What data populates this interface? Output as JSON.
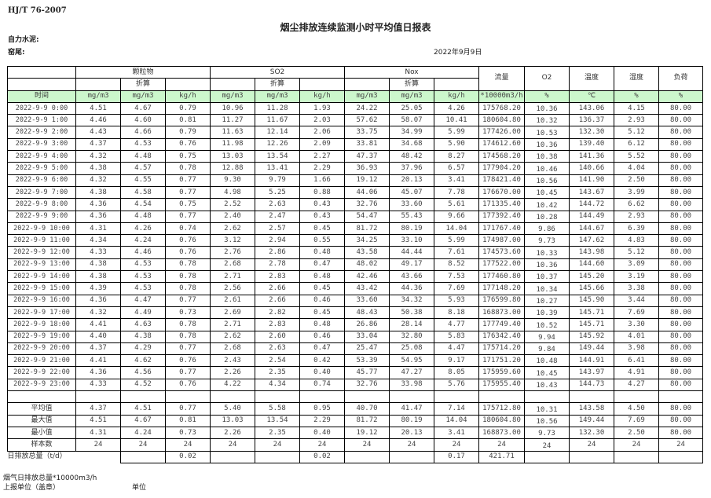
{
  "header": {
    "standard": "HJ/T  76-2007",
    "title": "烟尘排放连续监测小时平均值日报表",
    "company": "自力水泥:",
    "kiln": "窑尾:",
    "date": "2022年9月9日"
  },
  "table": {
    "groups": [
      "颗粒物",
      "SO2",
      "Nox"
    ],
    "converted_label": "折算",
    "single_columns": [
      "流量",
      "O2",
      "温度",
      "湿度",
      "负荷"
    ],
    "units": [
      "时间",
      "mg/m3",
      "mg/m3",
      "kg/h",
      "mg/m3",
      "mg/m3",
      "kg/h",
      "mg/m3",
      "mg/m3",
      "kg/h",
      "*10000m3/h",
      "%",
      "℃",
      "%",
      "%"
    ],
    "rows": [
      [
        "2022-9-9 0:00",
        "4.51",
        "4.67",
        "0.79",
        "10.96",
        "11.28",
        "1.93",
        "24.22",
        "25.05",
        "4.26",
        "175768.20",
        "10.36",
        "143.06",
        "4.15",
        "80.00"
      ],
      [
        "2022-9-9 1:00",
        "4.46",
        "4.60",
        "0.81",
        "11.27",
        "11.67",
        "2.03",
        "57.62",
        "58.07",
        "10.41",
        "180604.80",
        "10.32",
        "136.37",
        "2.93",
        "80.00"
      ],
      [
        "2022-9-9 2:00",
        "4.43",
        "4.66",
        "0.79",
        "11.63",
        "12.14",
        "2.06",
        "33.75",
        "34.99",
        "5.99",
        "177426.00",
        "10.53",
        "132.30",
        "5.12",
        "80.00"
      ],
      [
        "2022-9-9 3:00",
        "4.37",
        "4.53",
        "0.76",
        "11.98",
        "12.26",
        "2.09",
        "33.81",
        "34.68",
        "5.90",
        "174612.60",
        "10.36",
        "139.40",
        "6.12",
        "80.00"
      ],
      [
        "2022-9-9 4:00",
        "4.32",
        "4.48",
        "0.75",
        "13.03",
        "13.54",
        "2.27",
        "47.37",
        "48.42",
        "8.27",
        "174568.20",
        "10.38",
        "141.36",
        "5.52",
        "80.00"
      ],
      [
        "2022-9-9 5:00",
        "4.38",
        "4.57",
        "0.78",
        "12.88",
        "13.41",
        "2.29",
        "36.93",
        "37.96",
        "6.57",
        "177904.20",
        "10.46",
        "140.66",
        "4.04",
        "80.00"
      ],
      [
        "2022-9-9 6:00",
        "4.32",
        "4.55",
        "0.77",
        "9.30",
        "9.79",
        "1.66",
        "19.12",
        "20.13",
        "3.41",
        "178421.40",
        "10.56",
        "141.90",
        "2.50",
        "80.00"
      ],
      [
        "2022-9-9 7:00",
        "4.38",
        "4.58",
        "0.77",
        "4.98",
        "5.25",
        "0.88",
        "44.06",
        "45.07",
        "7.78",
        "176670.00",
        "10.45",
        "143.67",
        "3.99",
        "80.00"
      ],
      [
        "2022-9-9 8:00",
        "4.36",
        "4.54",
        "0.75",
        "2.52",
        "2.63",
        "0.43",
        "32.76",
        "33.60",
        "5.61",
        "171335.40",
        "10.42",
        "144.72",
        "6.62",
        "80.00"
      ],
      [
        "2022-9-9 9:00",
        "4.36",
        "4.48",
        "0.77",
        "2.40",
        "2.47",
        "0.43",
        "54.47",
        "55.43",
        "9.66",
        "177392.40",
        "10.28",
        "144.49",
        "2.93",
        "80.00"
      ],
      [
        "2022-9-9 10:00",
        "4.31",
        "4.26",
        "0.74",
        "2.62",
        "2.57",
        "0.45",
        "81.72",
        "80.19",
        "14.04",
        "171767.40",
        "9.86",
        "144.67",
        "6.39",
        "80.00"
      ],
      [
        "2022-9-9 11:00",
        "4.34",
        "4.24",
        "0.76",
        "3.12",
        "2.94",
        "0.55",
        "34.25",
        "33.10",
        "5.99",
        "174987.00",
        "9.73",
        "147.62",
        "4.83",
        "80.00"
      ],
      [
        "2022-9-9 12:00",
        "4.33",
        "4.46",
        "0.76",
        "2.76",
        "2.86",
        "0.48",
        "43.58",
        "44.44",
        "7.61",
        "174573.60",
        "10.33",
        "143.98",
        "5.12",
        "80.00"
      ],
      [
        "2022-9-9 13:00",
        "4.38",
        "4.53",
        "0.78",
        "2.68",
        "2.78",
        "0.47",
        "48.02",
        "49.17",
        "8.52",
        "177522.00",
        "10.36",
        "144.60",
        "3.09",
        "80.00"
      ],
      [
        "2022-9-9 14:00",
        "4.38",
        "4.53",
        "0.78",
        "2.71",
        "2.83",
        "0.48",
        "42.46",
        "43.66",
        "7.53",
        "177460.80",
        "10.37",
        "145.20",
        "3.19",
        "80.00"
      ],
      [
        "2022-9-9 15:00",
        "4.39",
        "4.53",
        "0.78",
        "2.56",
        "2.66",
        "0.45",
        "43.42",
        "44.36",
        "7.69",
        "177148.20",
        "10.34",
        "145.66",
        "3.38",
        "80.00"
      ],
      [
        "2022-9-9 16:00",
        "4.36",
        "4.47",
        "0.77",
        "2.61",
        "2.66",
        "0.46",
        "33.60",
        "34.32",
        "5.93",
        "176599.80",
        "10.27",
        "145.90",
        "3.44",
        "80.00"
      ],
      [
        "2022-9-9 17:00",
        "4.32",
        "4.49",
        "0.73",
        "2.69",
        "2.82",
        "0.45",
        "48.43",
        "50.38",
        "8.18",
        "168873.00",
        "10.39",
        "145.71",
        "7.69",
        "80.00"
      ],
      [
        "2022-9-9 18:00",
        "4.41",
        "4.63",
        "0.78",
        "2.71",
        "2.83",
        "0.48",
        "26.86",
        "28.14",
        "4.77",
        "177749.40",
        "10.52",
        "145.71",
        "3.30",
        "80.00"
      ],
      [
        "2022-9-9 19:00",
        "4.40",
        "4.38",
        "0.78",
        "2.62",
        "2.60",
        "0.46",
        "33.04",
        "32.80",
        "5.83",
        "176342.40",
        "9.94",
        "145.92",
        "4.01",
        "80.00"
      ],
      [
        "2022-9-9 20:00",
        "4.37",
        "4.29",
        "0.77",
        "2.68",
        "2.63",
        "0.47",
        "25.47",
        "25.08",
        "4.47",
        "175714.20",
        "9.84",
        "149.44",
        "3.98",
        "80.00"
      ],
      [
        "2022-9-9 21:00",
        "4.41",
        "4.62",
        "0.76",
        "2.43",
        "2.54",
        "0.42",
        "53.39",
        "54.95",
        "9.17",
        "171751.20",
        "10.48",
        "144.91",
        "6.41",
        "80.00"
      ],
      [
        "2022-9-9 22:00",
        "4.36",
        "4.56",
        "0.77",
        "2.26",
        "2.35",
        "0.40",
        "45.77",
        "47.27",
        "8.05",
        "175959.60",
        "10.45",
        "143.97",
        "4.91",
        "80.00"
      ],
      [
        "2022-9-9 23:00",
        "4.33",
        "4.52",
        "0.76",
        "4.22",
        "4.34",
        "0.74",
        "32.76",
        "33.98",
        "5.76",
        "175955.40",
        "10.43",
        "144.73",
        "4.27",
        "80.00"
      ]
    ],
    "stats": [
      [
        "平均值",
        "4.37",
        "4.51",
        "0.77",
        "5.40",
        "5.58",
        "0.95",
        "40.70",
        "41.47",
        "7.14",
        "175712.80",
        "10.31",
        "143.58",
        "4.50",
        "80.00"
      ],
      [
        "最大值",
        "4.51",
        "4.67",
        "0.81",
        "13.03",
        "13.54",
        "2.29",
        "81.72",
        "80.19",
        "14.04",
        "180604.80",
        "10.56",
        "149.44",
        "7.69",
        "80.00"
      ],
      [
        "最小值",
        "4.31",
        "4.24",
        "0.73",
        "2.26",
        "2.35",
        "0.40",
        "19.12",
        "20.13",
        "3.41",
        "168873.00",
        "9.73",
        "132.30",
        "2.50",
        "80.00"
      ],
      [
        "样本数",
        "24",
        "24",
        "24",
        "24",
        "24",
        "24",
        "24",
        "24",
        "24",
        "24",
        "24",
        "24",
        "24",
        "24"
      ]
    ],
    "daily_total": {
      "label": "日排放总量（t/d）",
      "values": [
        "",
        "0.02",
        "",
        "",
        "0.02",
        "",
        "",
        "0.17",
        "421.71",
        "",
        "",
        "",
        ""
      ]
    }
  },
  "footer": {
    "flue_gas_total": "烟气日排放总量*10000m3/h",
    "reporting_unit": "上报单位（盖章）",
    "unit": "单位"
  },
  "colors": {
    "units_row_bg": "#ccf7cc"
  }
}
